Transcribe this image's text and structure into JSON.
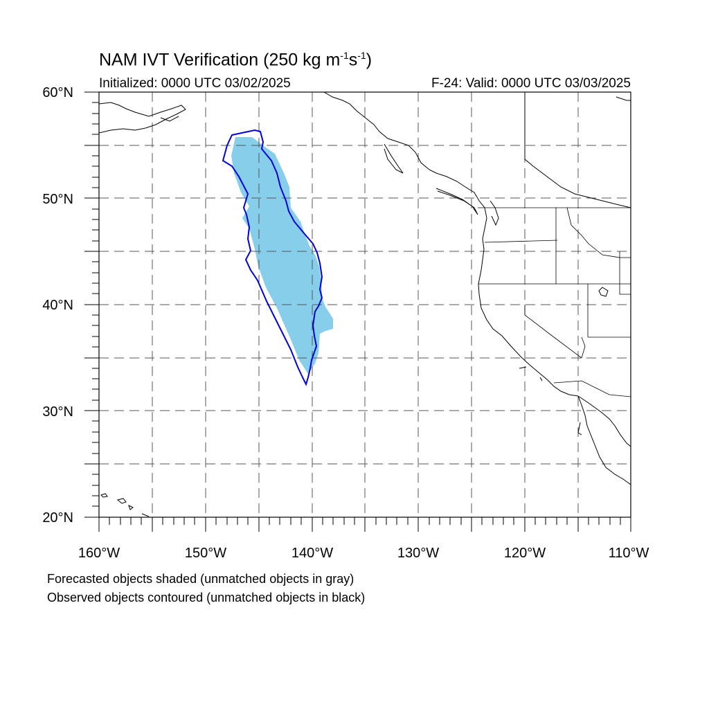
{
  "title": {
    "prefix": "NAM IVT Verification (250 kg m",
    "exp1": "-1",
    "mid": "s",
    "exp2": "-1",
    "suffix": ")"
  },
  "initialized": "Initialized: 0000 UTC 03/02/2025",
  "valid": "F-24: Valid: 0000 UTC 03/03/2025",
  "lat_labels": [
    "60°N",
    "50°N",
    "40°N",
    "30°N",
    "20°N"
  ],
  "lon_labels": [
    "160°W",
    "150°W",
    "140°W",
    "130°W",
    "120°W",
    "110°W"
  ],
  "footer": {
    "line1": "Forecasted objects shaded (unmatched objects in gray)",
    "line2": "Observed objects contoured (unmatched objects in black)"
  },
  "map": {
    "lon_range": [
      -160,
      -110
    ],
    "lat_range": [
      20,
      60
    ],
    "projection": "cylindrical equidistant",
    "gridline_style": "dashed",
    "colors": {
      "forecast_fill": "#87ceeb",
      "observed_contour": "#0000dd",
      "coastline": "#000000",
      "grid": "#555555"
    }
  }
}
